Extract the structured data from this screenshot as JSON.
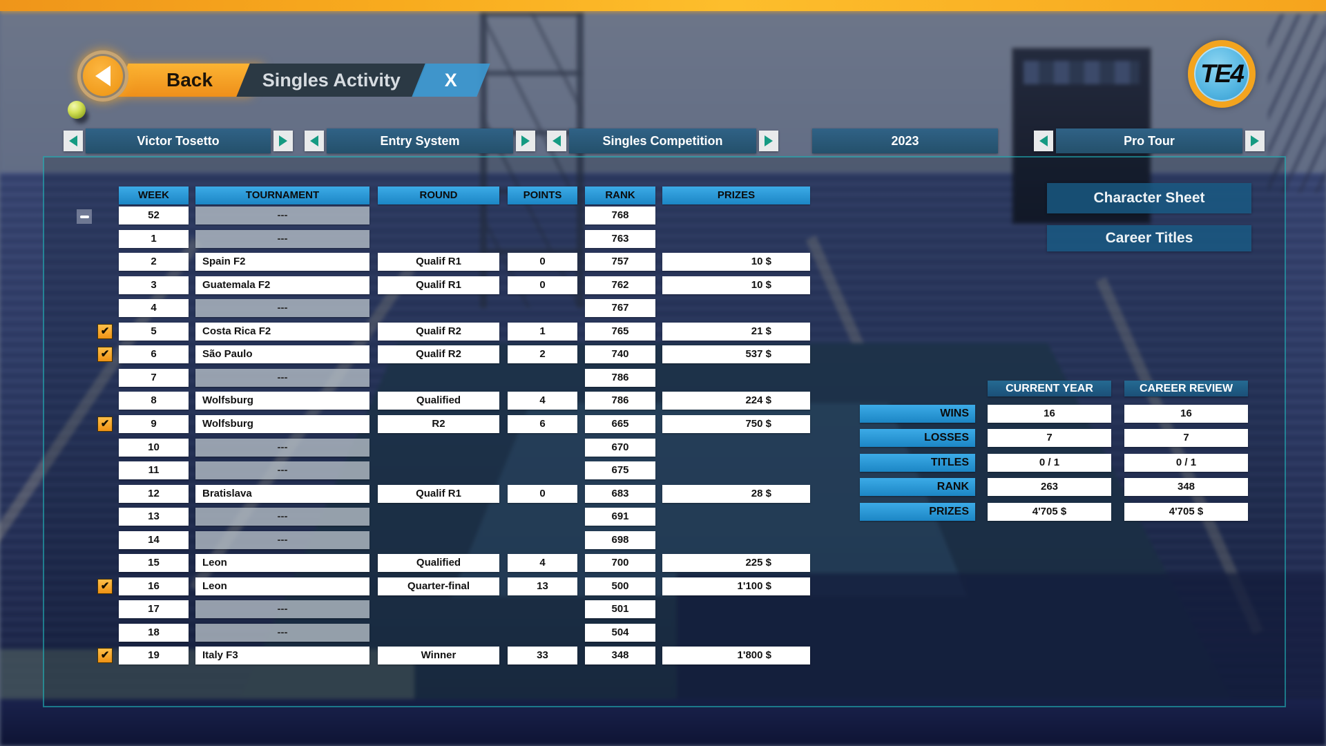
{
  "titlebar": {
    "back_label": "Back",
    "tab_label": "Singles Activity",
    "close_label": "X",
    "logo_text": "TE4"
  },
  "nav": {
    "player": {
      "label": "Victor Tosetto"
    },
    "entry_system": {
      "label": "Entry System"
    },
    "competition": {
      "label": "Singles Competition"
    },
    "year": {
      "label": "2023"
    },
    "tour": {
      "label": "Pro Tour"
    }
  },
  "table": {
    "columns": [
      "WEEK",
      "TOURNAMENT",
      "ROUND",
      "POINTS",
      "RANK",
      "PRIZES"
    ],
    "collapse_button": "-",
    "check_glyph": "✔",
    "rows": [
      {
        "week": "52",
        "tournament": "---",
        "round": "",
        "points": "",
        "rank": "768",
        "prizes": "",
        "checked": false
      },
      {
        "week": "1",
        "tournament": "---",
        "round": "",
        "points": "",
        "rank": "763",
        "prizes": "",
        "checked": false
      },
      {
        "week": "2",
        "tournament": "Spain F2",
        "round": "Qualif R1",
        "points": "0",
        "rank": "757",
        "prizes": "10 $",
        "checked": false
      },
      {
        "week": "3",
        "tournament": "Guatemala F2",
        "round": "Qualif R1",
        "points": "0",
        "rank": "762",
        "prizes": "10 $",
        "checked": false
      },
      {
        "week": "4",
        "tournament": "---",
        "round": "",
        "points": "",
        "rank": "767",
        "prizes": "",
        "checked": false
      },
      {
        "week": "5",
        "tournament": "Costa Rica F2",
        "round": "Qualif R2",
        "points": "1",
        "rank": "765",
        "prizes": "21 $",
        "checked": true
      },
      {
        "week": "6",
        "tournament": "São Paulo",
        "round": "Qualif R2",
        "points": "2",
        "rank": "740",
        "prizes": "537 $",
        "checked": true
      },
      {
        "week": "7",
        "tournament": "---",
        "round": "",
        "points": "",
        "rank": "786",
        "prizes": "",
        "checked": false
      },
      {
        "week": "8",
        "tournament": "Wolfsburg",
        "round": "Qualified",
        "points": "4",
        "rank": "786",
        "prizes": "224 $",
        "checked": false
      },
      {
        "week": "9",
        "tournament": "Wolfsburg",
        "round": "R2",
        "points": "6",
        "rank": "665",
        "prizes": "750 $",
        "checked": true
      },
      {
        "week": "10",
        "tournament": "---",
        "round": "",
        "points": "",
        "rank": "670",
        "prizes": "",
        "checked": false
      },
      {
        "week": "11",
        "tournament": "---",
        "round": "",
        "points": "",
        "rank": "675",
        "prizes": "",
        "checked": false
      },
      {
        "week": "12",
        "tournament": "Bratislava",
        "round": "Qualif R1",
        "points": "0",
        "rank": "683",
        "prizes": "28 $",
        "checked": false
      },
      {
        "week": "13",
        "tournament": "---",
        "round": "",
        "points": "",
        "rank": "691",
        "prizes": "",
        "checked": false
      },
      {
        "week": "14",
        "tournament": "---",
        "round": "",
        "points": "",
        "rank": "698",
        "prizes": "",
        "checked": false
      },
      {
        "week": "15",
        "tournament": "Leon",
        "round": "Qualified",
        "points": "4",
        "rank": "700",
        "prizes": "225 $",
        "checked": false
      },
      {
        "week": "16",
        "tournament": "Leon",
        "round": "Quarter-final",
        "points": "13",
        "rank": "500",
        "prizes": "1'100 $",
        "checked": true
      },
      {
        "week": "17",
        "tournament": "---",
        "round": "",
        "points": "",
        "rank": "501",
        "prizes": "",
        "checked": false
      },
      {
        "week": "18",
        "tournament": "---",
        "round": "",
        "points": "",
        "rank": "504",
        "prizes": "",
        "checked": false
      },
      {
        "week": "19",
        "tournament": "Italy F3",
        "round": "Winner",
        "points": "33",
        "rank": "348",
        "prizes": "1'800 $",
        "checked": true
      }
    ]
  },
  "side_buttons": {
    "character_sheet": "Character Sheet",
    "career_titles": "Career Titles"
  },
  "stats": {
    "col_headers": [
      "CURRENT YEAR",
      "CAREER REVIEW"
    ],
    "rows": [
      {
        "label": "WINS",
        "current": "16",
        "career": "16"
      },
      {
        "label": "LOSSES",
        "current": "7",
        "career": "7"
      },
      {
        "label": "TITLES",
        "current": "0 / 1",
        "career": "0 / 1"
      },
      {
        "label": "RANK",
        "current": "263",
        "career": "348"
      },
      {
        "label": "PRIZES",
        "current": "4'705 $",
        "career": "4'705 $"
      }
    ]
  },
  "colors": {
    "accent_orange": "#f6a41d",
    "header_blue_top": "#3cabe7",
    "header_blue_bottom": "#1c86c5",
    "selector_bar": "#2a5a76",
    "stats_header": "#1b5078",
    "tab_dark": "#2b3944",
    "tab_close_blue": "#3c98d0",
    "checkbox_orange": "#f3a021",
    "panel_border_teal": "#22c4c8"
  }
}
